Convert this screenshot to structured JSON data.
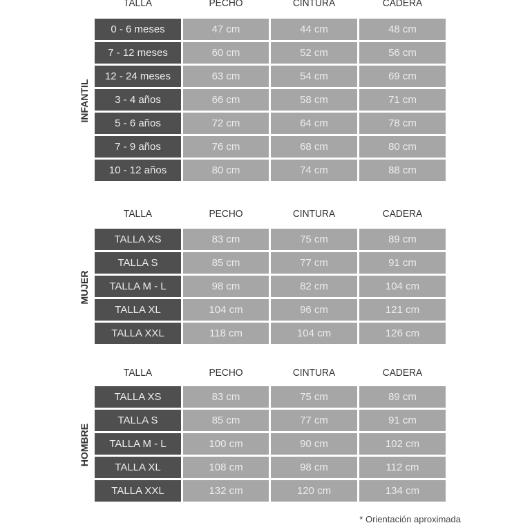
{
  "headers": [
    "TALLA",
    "PECHO",
    "CINTURA",
    "CADERA"
  ],
  "colors": {
    "size_cell": "#4f4f4f",
    "value_cell": "#a6a6a6"
  },
  "sections": [
    {
      "label": "INFANTIL",
      "rows": [
        [
          "0 - 6 meses",
          "47 cm",
          "44 cm",
          "48 cm"
        ],
        [
          "7 - 12 meses",
          "60 cm",
          "52 cm",
          "56 cm"
        ],
        [
          "12 - 24 meses",
          "63 cm",
          "54 cm",
          "69 cm"
        ],
        [
          "3 - 4 años",
          "66 cm",
          "58 cm",
          "71 cm"
        ],
        [
          "5 - 6 años",
          "72 cm",
          "64 cm",
          "78 cm"
        ],
        [
          "7 - 9 años",
          "76 cm",
          "68 cm",
          "80 cm"
        ],
        [
          "10 - 12 años",
          "80 cm",
          "74 cm",
          "88 cm"
        ]
      ]
    },
    {
      "label": "MUJER",
      "rows": [
        [
          "TALLA XS",
          "83 cm",
          "75 cm",
          "89 cm"
        ],
        [
          "TALLA S",
          "85 cm",
          "77 cm",
          "91 cm"
        ],
        [
          "TALLA M - L",
          "98 cm",
          "82 cm",
          "104 cm"
        ],
        [
          "TALLA XL",
          "104 cm",
          "96 cm",
          "121 cm"
        ],
        [
          "TALLA XXL",
          "118 cm",
          "104 cm",
          "126 cm"
        ]
      ]
    },
    {
      "label": "HOMBRE",
      "rows": [
        [
          "TALLA XS",
          "83 cm",
          "75 cm",
          "89 cm"
        ],
        [
          "TALLA S",
          "85 cm",
          "77 cm",
          "91 cm"
        ],
        [
          "TALLA M - L",
          "100 cm",
          "90 cm",
          "102 cm"
        ],
        [
          "TALLA XL",
          "108 cm",
          "98 cm",
          "112 cm"
        ],
        [
          "TALLA XXL",
          "132 cm",
          "120 cm",
          "134 cm"
        ]
      ]
    }
  ],
  "footnote": "* Orientación aproximada"
}
